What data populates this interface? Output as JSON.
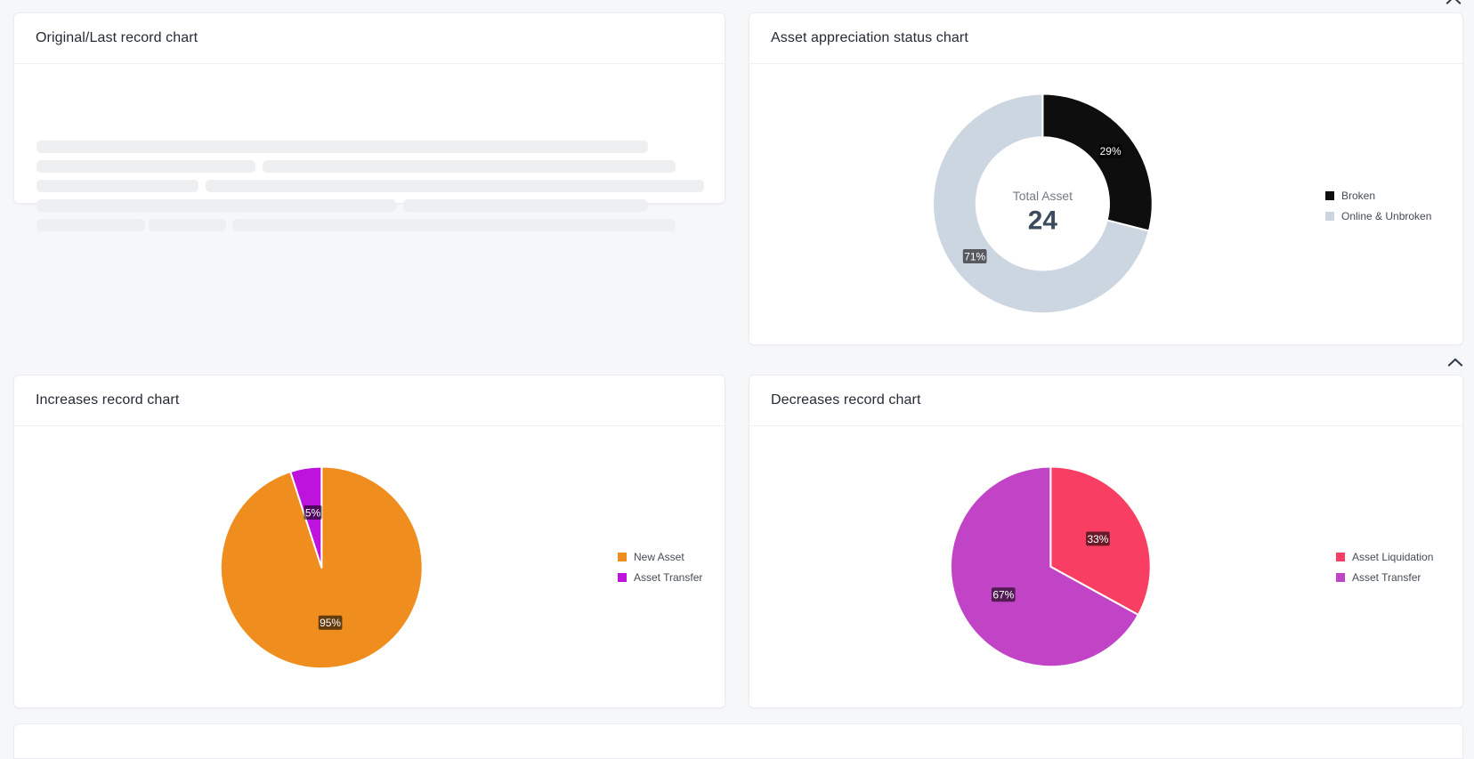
{
  "page": {
    "background_color": "#f6f7f9",
    "card_border_color": "#eaecef"
  },
  "panels": {
    "original": {
      "title": "Original/Last record chart",
      "state": "loading",
      "skeleton_rows": [
        [
          [
            25,
            687
          ]
        ],
        [
          [
            25,
            246
          ],
          [
            279,
            464
          ]
        ],
        [
          [
            25,
            182
          ],
          [
            215,
            560
          ]
        ],
        [
          [
            25,
            404
          ],
          [
            437,
            275
          ]
        ],
        [
          [
            25,
            122
          ],
          [
            151,
            87
          ],
          [
            245,
            498
          ]
        ]
      ]
    },
    "status": {
      "title": "Asset appreciation status chart"
    },
    "increases": {
      "title": "Increases record chart"
    },
    "decreases": {
      "title": "Decreases record chart"
    }
  },
  "icons": {
    "collapse_top": "chevron-up",
    "collapse_row": "chevron-up"
  },
  "label_style": {
    "box_background": "rgba(0,0,0,0.58)",
    "text_color": "#ffffff"
  },
  "chart_data": [
    {
      "id": "status",
      "type": "pie",
      "variant": "donut",
      "title": "Asset appreciation status chart",
      "legend_position": "right",
      "center_label": "Total Asset",
      "center_value": "24",
      "slices": [
        {
          "label": "Broken",
          "value": 29,
          "percent_label": "29%",
          "color": "#0e0e0e"
        },
        {
          "label": "Online & Unbroken",
          "value": 71,
          "percent_label": "71%",
          "color": "#ccd6e1"
        }
      ]
    },
    {
      "id": "increases",
      "type": "pie",
      "variant": "pie",
      "title": "Increases record chart",
      "legend_position": "right",
      "slices": [
        {
          "label": "New Asset",
          "value": 95,
          "percent_label": "95%",
          "color": "#ef8d1e"
        },
        {
          "label": "Asset Transfer",
          "value": 5,
          "percent_label": "5%",
          "color": "#bd13dd"
        }
      ]
    },
    {
      "id": "decreases",
      "type": "pie",
      "variant": "pie",
      "title": "Decreases record chart",
      "legend_position": "right",
      "slices": [
        {
          "label": "Asset Liquidation",
          "value": 33,
          "percent_label": "33%",
          "color": "#f93e63"
        },
        {
          "label": "Asset Transfer",
          "value": 67,
          "percent_label": "67%",
          "color": "#c244c6"
        }
      ]
    }
  ]
}
